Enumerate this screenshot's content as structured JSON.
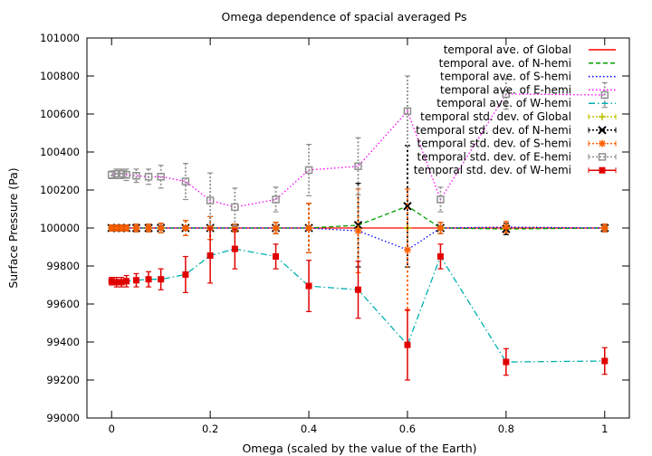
{
  "chart_data": {
    "type": "line",
    "title": "Omega dependence of spacial averaged Ps",
    "xlabel": "Omega (scaled by the value of the Earth)",
    "ylabel": "Surface Pressure (Pa)",
    "xlim": [
      -0.05,
      1.05
    ],
    "ylim": [
      99000,
      101000
    ],
    "xticks": [
      0,
      0.2,
      0.4,
      0.6,
      0.8,
      1
    ],
    "xtick_labels": [
      "0",
      "0.2",
      "0.4",
      "0.6",
      "0.8",
      "1"
    ],
    "yticks": [
      99000,
      99200,
      99400,
      99600,
      99800,
      100000,
      100200,
      100400,
      100600,
      100800,
      101000
    ],
    "ytick_labels": [
      "99000",
      "99200",
      "99400",
      "99600",
      "99800",
      "100000",
      "100200",
      "100400",
      "100600",
      "100800",
      "101000"
    ],
    "grid": false,
    "legend_position": "top-right",
    "x": [
      0,
      0.01,
      0.02,
      0.03,
      0.05,
      0.075,
      0.1,
      0.15,
      0.2,
      0.25,
      0.333,
      0.4,
      0.5,
      0.6,
      0.667,
      0.8,
      1
    ],
    "series": [
      {
        "name": "temporal ave. of Global",
        "color": "#ff0000",
        "style": "solid",
        "values": [
          100000,
          100000,
          100000,
          100000,
          100000,
          100000,
          100000,
          100000,
          100000,
          100000,
          100000,
          100000,
          100000,
          100000,
          100000,
          100000,
          100000
        ]
      },
      {
        "name": "temporal ave. of N-hemi",
        "color": "#00a000",
        "style": "dashed",
        "values": [
          100000,
          100000,
          100000,
          100000,
          100000,
          100000,
          100000,
          100000,
          100000,
          100000,
          100000,
          100000,
          100015,
          100115,
          100000,
          99995,
          100000
        ]
      },
      {
        "name": "temporal ave. of S-hemi",
        "color": "#0000ff",
        "style": "dotted",
        "values": [
          100000,
          100000,
          100000,
          100000,
          100000,
          100000,
          100000,
          100000,
          100000,
          100000,
          100000,
          100000,
          99985,
          99885,
          100000,
          100005,
          100000
        ]
      },
      {
        "name": "temporal ave. of E-hemi",
        "color": "#ff00ff",
        "style": "dotted",
        "values": [
          100280,
          100285,
          100285,
          100280,
          100275,
          100270,
          100270,
          100245,
          100145,
          100110,
          100150,
          100305,
          100325,
          100615,
          100150,
          100705,
          100700
        ]
      },
      {
        "name": "temporal ave. of W-hemi",
        "color": "#00b0b0",
        "style": "dashdot",
        "values": [
          99720,
          99715,
          99715,
          99720,
          99725,
          99730,
          99730,
          99755,
          99855,
          99890,
          99850,
          99695,
          99675,
          99385,
          99850,
          99295,
          99300
        ]
      },
      {
        "name": "temporal std. dev. of Global",
        "color": "#c0c000",
        "style": "errorbar",
        "marker": "plus",
        "values": [
          100000,
          100000,
          100000,
          100000,
          100000,
          100000,
          100000,
          100000,
          100000,
          100000,
          100000,
          100000,
          100000,
          100000,
          100000,
          100000,
          100000
        ],
        "errors": [
          3,
          3,
          3,
          3,
          3,
          3,
          3,
          3,
          3,
          3,
          3,
          3,
          3,
          3,
          3,
          3,
          3
        ]
      },
      {
        "name": "temporal std. dev. of N-hemi",
        "color": "#000000",
        "style": "errorbar",
        "marker": "cross",
        "values": [
          100000,
          100000,
          100000,
          100000,
          100000,
          100000,
          100000,
          100000,
          100000,
          100000,
          100000,
          100000,
          100015,
          100115,
          100000,
          99995,
          100000
        ],
        "errors": [
          15,
          15,
          15,
          15,
          20,
          20,
          25,
          40,
          60,
          20,
          30,
          130,
          220,
          320,
          30,
          30,
          20
        ]
      },
      {
        "name": "temporal std. dev. of S-hemi",
        "color": "#ff6000",
        "style": "errorbar",
        "marker": "star",
        "values": [
          100000,
          100000,
          100000,
          100000,
          100000,
          100000,
          100000,
          100000,
          100000,
          100000,
          100000,
          100000,
          99985,
          99885,
          100000,
          100005,
          100000
        ],
        "errors": [
          15,
          15,
          15,
          15,
          20,
          20,
          25,
          40,
          60,
          20,
          30,
          130,
          220,
          320,
          30,
          30,
          20
        ]
      },
      {
        "name": "temporal std. dev. of E-hemi",
        "color": "#909090",
        "style": "errorbar",
        "marker": "open-square",
        "values": [
          100280,
          100285,
          100285,
          100280,
          100275,
          100270,
          100270,
          100245,
          100145,
          100110,
          100150,
          100305,
          100325,
          100615,
          100150,
          100705,
          100700
        ],
        "errors": [
          20,
          25,
          25,
          30,
          35,
          40,
          60,
          95,
          145,
          100,
          65,
          135,
          150,
          185,
          65,
          80,
          65
        ]
      },
      {
        "name": "temporal std. dev. of W-hemi",
        "color": "#e00000",
        "style": "errorbar",
        "marker": "filled-square",
        "values": [
          99720,
          99715,
          99715,
          99720,
          99725,
          99730,
          99730,
          99755,
          99855,
          99890,
          99850,
          99695,
          99675,
          99385,
          99850,
          99295,
          99300
        ],
        "errors": [
          20,
          25,
          25,
          30,
          35,
          40,
          55,
          95,
          145,
          105,
          65,
          135,
          150,
          185,
          65,
          70,
          70
        ]
      }
    ]
  }
}
